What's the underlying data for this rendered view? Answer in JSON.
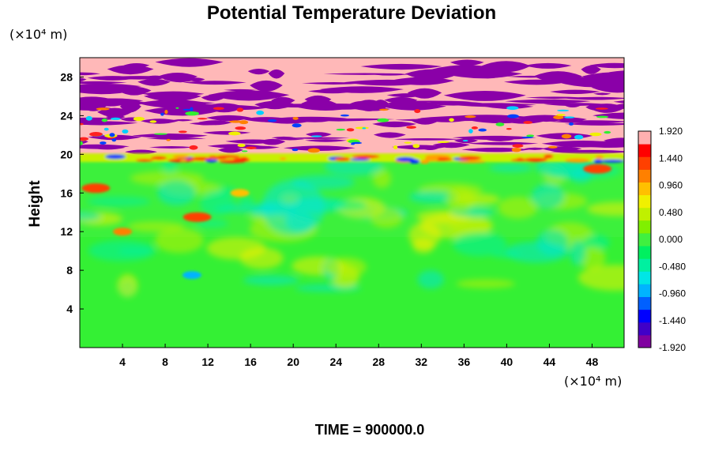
{
  "chart_data": {
    "type": "heatmap",
    "title": "Potential Temperature Deviation",
    "ylabel": "Height",
    "x_unit": "(×10⁴ m)",
    "y_unit": "(×10⁴ m)",
    "xlim": [
      0,
      51
    ],
    "ylim": [
      0,
      30
    ],
    "x_ticks": [
      "4",
      "8",
      "12",
      "16",
      "20",
      "24",
      "28",
      "32",
      "36",
      "40",
      "44",
      "48"
    ],
    "y_ticks": [
      "4",
      "8",
      "12",
      "16",
      "20",
      "24",
      "28"
    ],
    "colorbar": {
      "min": -1.92,
      "max": 1.92,
      "levels": 17,
      "tick_labels": [
        "1.920",
        "1.440",
        "0.960",
        "0.480",
        "0.000",
        "-0.480",
        "-0.960",
        "-1.440",
        "-1.920"
      ],
      "colors": [
        "#8000a0",
        "#4000c8",
        "#0000ff",
        "#0060ff",
        "#00b4ff",
        "#00e6e6",
        "#00f0a0",
        "#00f060",
        "#40f040",
        "#80f000",
        "#c0f000",
        "#f0f000",
        "#ffc000",
        "#ff8000",
        "#ff4000",
        "#ff0000",
        "#ffb0b0"
      ]
    },
    "features": [
      {
        "region": "stratosphere",
        "y_range": [
          20,
          30
        ],
        "pattern": "alternating layers of pink (high) and purple (low) deviation"
      },
      {
        "region": "tropopause",
        "y": 19.5,
        "pattern": "thin band of red and blue extremes"
      },
      {
        "region": "troposphere",
        "y_range": [
          0,
          19
        ],
        "pattern": "mostly near zero (green) with turbulent cyan and yellow eddies"
      },
      {
        "x": 1.5,
        "y": 16.5,
        "level": 1.44
      },
      {
        "x": 11,
        "y": 13.5,
        "level": 1.44
      },
      {
        "x": 4,
        "y": 12,
        "level": 1.2
      },
      {
        "x": 15,
        "y": 16,
        "level": 0.9
      },
      {
        "x": 48.5,
        "y": 18.5,
        "level": 1.44
      },
      {
        "x": 10.5,
        "y": 7.5,
        "level": -0.96
      }
    ]
  },
  "footer": {
    "time_label": "TIME = 900000.0"
  }
}
